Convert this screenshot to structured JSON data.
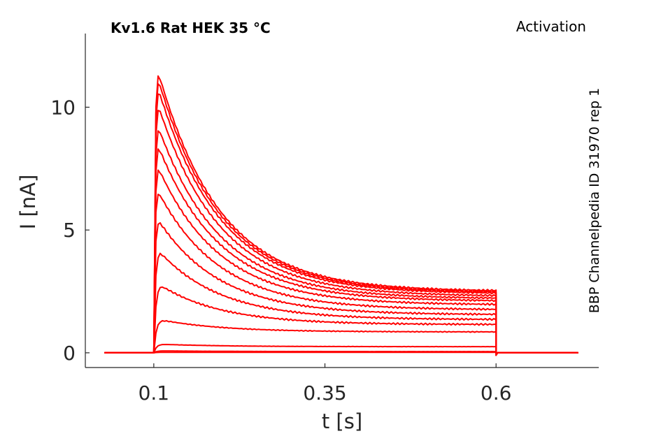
{
  "chart_data": {
    "type": "line",
    "title_left": "Kv1.6  Rat  HEK  35 °C",
    "title_right": "Activation",
    "side_label": "BBP Channelpedia ID 31970 rep 1",
    "xlabel": "t [s]",
    "ylabel": "I [nA]",
    "xlim": [
      0.0,
      0.75
    ],
    "ylim": [
      -0.6,
      13.0
    ],
    "xticks": [
      0.1,
      0.35,
      0.6
    ],
    "xtick_labels": [
      "0.1",
      "0.35",
      "0.6"
    ],
    "yticks": [
      0,
      5,
      10
    ],
    "ytick_labels": [
      "0",
      "5",
      "10"
    ],
    "grid": false,
    "legend": false,
    "line_color": "#ff0000",
    "pulse_start": 0.1,
    "pulse_end": 0.6,
    "record_start": 0.028,
    "record_end": 0.72,
    "series": [
      {
        "peak": 0.02,
        "end": 0.02
      },
      {
        "peak": 0.08,
        "end": 0.05
      },
      {
        "peak": 0.35,
        "end": 0.25
      },
      {
        "peak": 1.35,
        "end": 0.85
      },
      {
        "peak": 2.8,
        "end": 1.15
      },
      {
        "peak": 4.2,
        "end": 1.35
      },
      {
        "peak": 5.5,
        "end": 1.55
      },
      {
        "peak": 6.7,
        "end": 1.75
      },
      {
        "peak": 7.7,
        "end": 1.95
      },
      {
        "peak": 8.6,
        "end": 2.1
      },
      {
        "peak": 9.4,
        "end": 2.2
      },
      {
        "peak": 10.3,
        "end": 2.3
      },
      {
        "peak": 11.0,
        "end": 2.4
      },
      {
        "peak": 11.4,
        "end": 2.45
      },
      {
        "peak": 11.7,
        "end": 2.5
      }
    ]
  }
}
